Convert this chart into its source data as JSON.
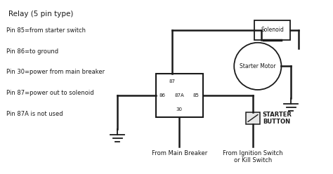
{
  "bg_color": "#ffffff",
  "line_color": "#1a1a1a",
  "title": "Relay (5 pin type)",
  "labels_left": [
    "Pin 85=from starter switch",
    "Pin 86=to ground",
    "Pin 30=power from main breaker",
    "Pin 87=power out to solenoid",
    "Pin 87A is not used"
  ],
  "solenoid_label": "Solenoid",
  "motor_label": "Starter Motor",
  "from_main_breaker": "From Main Breaker",
  "from_ignition": "From Ignition Switch\nor Kill Switch",
  "starter_button": "STARTER\nBUTTON"
}
